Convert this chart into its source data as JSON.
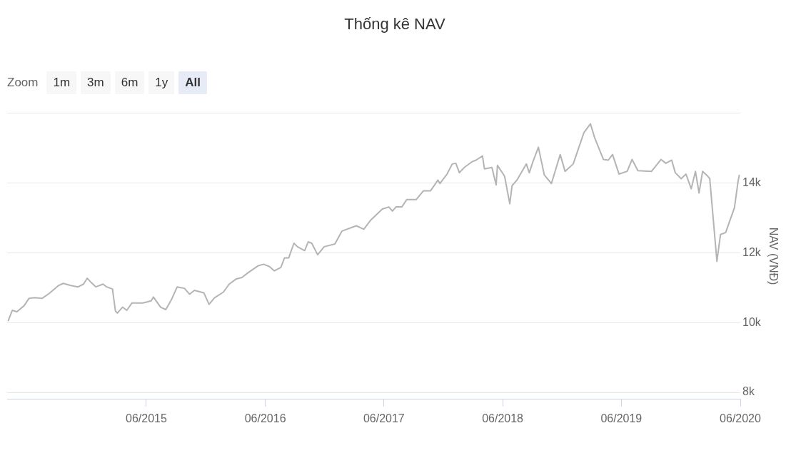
{
  "chart_data": {
    "type": "line",
    "title": "Thống kê NAV",
    "ylabel": "NAV (VNĐ)",
    "annotations": [
      "Zoom",
      "1m",
      "3m",
      "6m",
      "1y",
      "All"
    ],
    "xlim": [
      "2014-03-30",
      "2020-06-01"
    ],
    "xticks": [
      {
        "value": "2015-06",
        "label": "06/2015"
      },
      {
        "value": "2016-06",
        "label": "06/2016"
      },
      {
        "value": "2017-06",
        "label": "06/2017"
      },
      {
        "value": "2018-06",
        "label": "06/2018"
      },
      {
        "value": "2019-06",
        "label": "06/2019"
      },
      {
        "value": "2020-06",
        "label": "06/2020"
      }
    ],
    "ylim": [
      7800,
      16000
    ],
    "yticks": [
      {
        "value": 8000,
        "label": "8k"
      },
      {
        "value": 10000,
        "label": "10k"
      },
      {
        "value": 12000,
        "label": "12k"
      },
      {
        "value": 14000,
        "label": "14k"
      },
      {
        "value": 16000,
        "label": null
      }
    ],
    "grid": "y",
    "legend": false,
    "marker": "none",
    "line_style": "solid",
    "x": [
      "2014-04-02",
      "2014-04-15",
      "2014-04-29",
      "2014-05-21",
      "2014-06-05",
      "2014-06-23",
      "2014-07-15",
      "2014-08-06",
      "2014-09-04",
      "2014-09-19",
      "2014-10-12",
      "2014-11-03",
      "2014-11-20",
      "2014-12-01",
      "2014-12-13",
      "2014-12-28",
      "2015-01-19",
      "2015-01-30",
      "2015-02-17",
      "2015-02-26",
      "2015-03-04",
      "2015-03-20",
      "2015-04-02",
      "2015-04-18",
      "2015-05-21",
      "2015-06-16",
      "2015-06-23",
      "2015-07-15",
      "2015-07-31",
      "2015-08-17",
      "2015-09-04",
      "2015-09-26",
      "2015-10-12",
      "2015-10-27",
      "2015-11-25",
      "2015-12-11",
      "2015-12-28",
      "2016-01-24",
      "2016-02-11",
      "2016-03-04",
      "2016-03-21",
      "2016-04-08",
      "2016-05-09",
      "2016-05-27",
      "2016-06-14",
      "2016-06-29",
      "2016-07-19",
      "2016-07-30",
      "2016-08-12",
      "2016-08-28",
      "2016-09-08",
      "2016-09-30",
      "2016-10-11",
      "2016-10-22",
      "2016-11-09",
      "2016-11-29",
      "2017-01-01",
      "2017-01-23",
      "2017-03-08",
      "2017-03-31",
      "2017-04-22",
      "2017-05-27",
      "2017-06-16",
      "2017-06-27",
      "2017-07-08",
      "2017-07-26",
      "2017-08-10",
      "2017-09-08",
      "2017-09-30",
      "2017-10-22",
      "2017-11-14",
      "2017-11-20",
      "2017-12-12",
      "2017-12-28",
      "2018-01-08",
      "2018-01-19",
      "2018-02-03",
      "2018-02-26",
      "2018-03-11",
      "2018-03-31",
      "2018-04-06",
      "2018-04-29",
      "2018-05-12",
      "2018-05-16",
      "2018-06-07",
      "2018-06-23",
      "2018-06-30",
      "2018-07-15",
      "2018-08-13",
      "2018-08-22",
      "2018-09-02",
      "2018-09-19",
      "2018-10-07",
      "2018-10-29",
      "2018-11-25",
      "2018-12-10",
      "2019-01-04",
      "2019-02-06",
      "2019-02-26",
      "2019-03-11",
      "2019-04-07",
      "2019-04-22",
      "2019-05-05",
      "2019-05-25",
      "2019-06-19",
      "2019-07-04",
      "2019-07-22",
      "2019-09-02",
      "2019-10-01",
      "2019-10-16",
      "2019-11-03",
      "2019-11-14",
      "2019-12-02",
      "2019-12-17",
      "2020-01-02",
      "2020-01-15",
      "2020-01-26",
      "2020-02-06",
      "2020-02-22",
      "2020-02-28",
      "2020-03-21",
      "2020-04-01",
      "2020-04-17",
      "2020-04-28",
      "2020-05-14",
      "2020-05-25",
      "2020-05-29"
    ],
    "series": [
      {
        "color": "#b4b4b4",
        "values": [
          10040,
          10350,
          10310,
          10480,
          10690,
          10710,
          10690,
          10830,
          11060,
          11120,
          11060,
          11020,
          11100,
          11270,
          11150,
          11020,
          11100,
          11020,
          10960,
          10330,
          10270,
          10440,
          10350,
          10560,
          10560,
          10620,
          10730,
          10440,
          10370,
          10650,
          11020,
          10980,
          10810,
          10920,
          10850,
          10520,
          10710,
          10870,
          11100,
          11250,
          11290,
          11420,
          11620,
          11670,
          11600,
          11480,
          11580,
          11850,
          11850,
          12270,
          12170,
          12060,
          12310,
          12270,
          11940,
          12170,
          12250,
          12620,
          12770,
          12670,
          12940,
          13250,
          13310,
          13190,
          13310,
          13310,
          13520,
          13520,
          13770,
          13770,
          14080,
          13980,
          14250,
          14540,
          14560,
          14290,
          14440,
          14600,
          14650,
          14770,
          14400,
          14440,
          13940,
          14500,
          14190,
          13400,
          13920,
          14080,
          14540,
          14290,
          14600,
          15020,
          14230,
          13980,
          14810,
          14330,
          14540,
          15440,
          15690,
          15290,
          14670,
          14650,
          14810,
          14250,
          14330,
          14670,
          14350,
          14330,
          14670,
          14560,
          14650,
          14290,
          14120,
          14250,
          13830,
          14330,
          13710,
          14330,
          14190,
          14120,
          11750,
          12520,
          12580,
          12870,
          13290,
          14040,
          14230
        ]
      }
    ]
  }
}
